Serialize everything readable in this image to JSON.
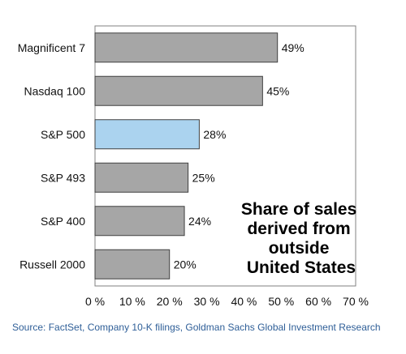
{
  "chart_data": {
    "type": "bar",
    "orientation": "horizontal",
    "categories": [
      "Magnificent 7",
      "Nasdaq 100",
      "S&P 500",
      "S&P 493",
      "S&P 400",
      "Russell 2000"
    ],
    "values": [
      49,
      45,
      28,
      25,
      24,
      20
    ],
    "value_labels": [
      "49%",
      "45%",
      "28%",
      "25%",
      "24%",
      "20%"
    ],
    "highlight_index": 2,
    "colors": {
      "bar": "#a6a6a6",
      "highlight": "#abd3ef",
      "bar_edge": "#404040",
      "source_text": "#2e5e97"
    },
    "xlim": [
      0,
      70
    ],
    "xticks": [
      0,
      10,
      20,
      30,
      40,
      50,
      60,
      70
    ],
    "xtick_labels": [
      "0 %",
      "10 %",
      "20 %",
      "30 %",
      "40 %",
      "50 %",
      "60 %",
      "70 %"
    ],
    "annotation": [
      "Share of sales",
      "derived from",
      "outside",
      "United States"
    ],
    "grid": false,
    "legend": "none",
    "title": "",
    "xlabel": "",
    "ylabel": ""
  },
  "source": "Source: FactSet, Company 10-K filings, Goldman Sachs Global Investment Research"
}
